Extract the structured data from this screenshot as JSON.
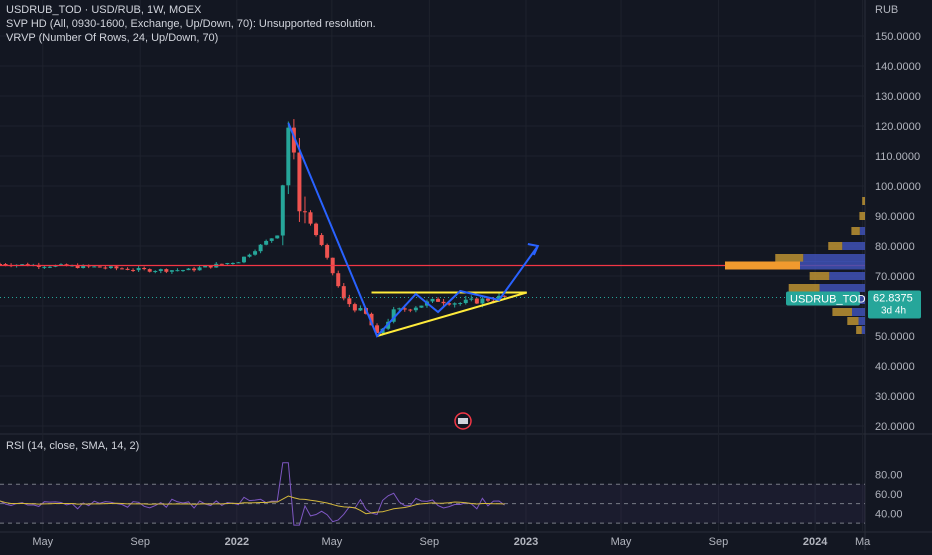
{
  "header": {
    "line1": "USDRUB_TOD · USD/RUB, 1W, MOEX",
    "line2": "SVP HD (All, 0930-1600, Exchange, Up/Down, 70): Unsupported resolution.",
    "line3": "VRVP (Number Of Rows, 24, Up/Down, 70)"
  },
  "price_axis": {
    "currency": "RUB",
    "ticks": [
      "150.0000",
      "140.0000",
      "130.0000",
      "120.0000",
      "110.0000",
      "100.0000",
      "90.0000",
      "80.0000",
      "70.0000",
      "60.0000",
      "50.0000",
      "40.0000",
      "30.0000",
      "20.0000"
    ]
  },
  "last_price": {
    "symbol": "USDRUB_TOD",
    "value": "62.8375",
    "countdown": "3d 4h"
  },
  "rsi": {
    "label": "RSI (14, close, SMA, 14, 2)",
    "ticks": [
      "80.00",
      "60.00",
      "40.00"
    ]
  },
  "time_axis": {
    "labels": [
      "May",
      "Sep",
      "2022",
      "May",
      "Sep",
      "2023",
      "May",
      "Sep",
      "2024",
      "Ma"
    ]
  },
  "colors": {
    "background": "#131722",
    "up_candle": "#26a69a",
    "down_candle": "#ef5350",
    "pattern_lines": "#2962ff",
    "triangle": "#ffeb3b",
    "support_line": "#f23645",
    "rsi_line": "#7e57c2",
    "rsi_sma": "#d4b83c",
    "volume_up": "#c79a33",
    "volume_down": "#3f51b5"
  },
  "chart_data": {
    "type": "candlestick",
    "title": "USDRUB_TOD · USD/RUB, 1W, MOEX",
    "y_unit": "RUB",
    "ylim": [
      18,
      157
    ],
    "x_range": [
      "2021-03-08",
      "2024-03-04"
    ],
    "horizontal_line": 73.5,
    "series": [
      {
        "name": "USDRUB_TOD",
        "x": [
          "2021-03-08",
          "2021-05-03",
          "2021-07-05",
          "2021-09-06",
          "2021-11-01",
          "2022-01-03",
          "2022-02-21",
          "2022-03-07",
          "2022-03-21",
          "2022-04-18",
          "2022-05-16",
          "2022-06-13",
          "2022-06-27",
          "2022-07-18",
          "2022-08-15",
          "2022-09-12",
          "2022-10-10",
          "2022-11-07",
          "2022-12-05"
        ],
        "close": [
          74,
          73.5,
          73,
          72,
          72,
          75,
          84,
          120,
          95,
          80,
          62,
          57,
          50,
          58,
          60,
          62,
          61,
          62,
          63
        ]
      }
    ],
    "annotations": {
      "drawn_path": [
        [
          "2022-03-07",
          121
        ],
        [
          "2022-06-27",
          50
        ],
        [
          "2022-08-15",
          64
        ],
        [
          "2022-09-12",
          58
        ],
        [
          "2022-10-10",
          65
        ],
        [
          "2022-11-28",
          62
        ],
        [
          "2023-01-16",
          80
        ]
      ],
      "triangle_top": [
        [
          "2022-06-20",
          64.5
        ],
        [
          "2023-01-02",
          64.5
        ]
      ],
      "triangle_bottom": [
        [
          "2022-06-27",
          50
        ],
        [
          "2023-01-02",
          64.5
        ]
      ]
    },
    "rsi": {
      "ylim": [
        25,
        100
      ],
      "levels": [
        70,
        50,
        30
      ]
    }
  }
}
